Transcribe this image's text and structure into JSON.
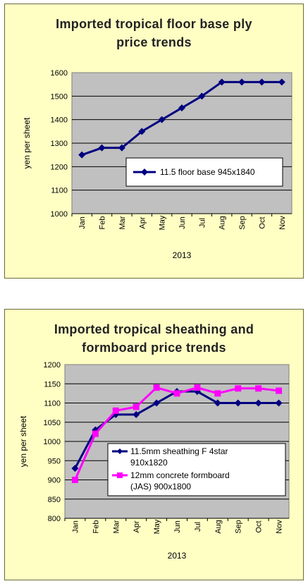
{
  "chart_data": [
    {
      "type": "line",
      "title_lines": [
        "Imported tropical floor base ply",
        "price trends"
      ],
      "xlabel": "2013",
      "ylabel": "yen per sheet",
      "categories": [
        "Jan",
        "Feb",
        "Mar",
        "Apr",
        "May",
        "Jun",
        "Jul",
        "Aug",
        "Sep",
        "Oct",
        "Nov"
      ],
      "ylim": [
        1000,
        1600
      ],
      "yticks": [
        "1000",
        "1100",
        "1200",
        "1300",
        "1400",
        "1500",
        "1600"
      ],
      "grid": true,
      "legend_position": "center-right",
      "series": [
        {
          "name": "11.5 floor base 945x1840",
          "color": "#000080",
          "marker": "diamond",
          "values": [
            1250,
            1280,
            1280,
            1350,
            1400,
            1450,
            1500,
            1560,
            1560,
            1560,
            1560
          ]
        }
      ]
    },
    {
      "type": "line",
      "title_lines": [
        "Imported tropical sheathing and",
        "formboard price trends"
      ],
      "xlabel": "2013",
      "ylabel": "yen per sheet",
      "categories": [
        "Jan",
        "Feb",
        "Mar",
        "Apr",
        "May",
        "Jun",
        "Jul",
        "Aug",
        "Sep",
        "Oct",
        "Nov"
      ],
      "ylim": [
        800,
        1200
      ],
      "yticks": [
        "800",
        "850",
        "900",
        "950",
        "1000",
        "1050",
        "1100",
        "1150",
        "1200"
      ],
      "grid": true,
      "legend_position": "bottom-right",
      "series": [
        {
          "name_lines": [
            "11.5mm sheathing F 4star",
            "910x1820"
          ],
          "color": "#000080",
          "marker": "diamond",
          "values": [
            930,
            1030,
            1070,
            1070,
            1100,
            1130,
            1130,
            1100,
            1100,
            1100,
            1100
          ]
        },
        {
          "name_lines": [
            "12mm concrete formboard",
            "(JAS) 900x1800"
          ],
          "color": "#ff00ff",
          "marker": "square",
          "values": [
            900,
            1020,
            1080,
            1090,
            1140,
            1125,
            1140,
            1125,
            1138,
            1138,
            1132
          ]
        }
      ]
    }
  ]
}
